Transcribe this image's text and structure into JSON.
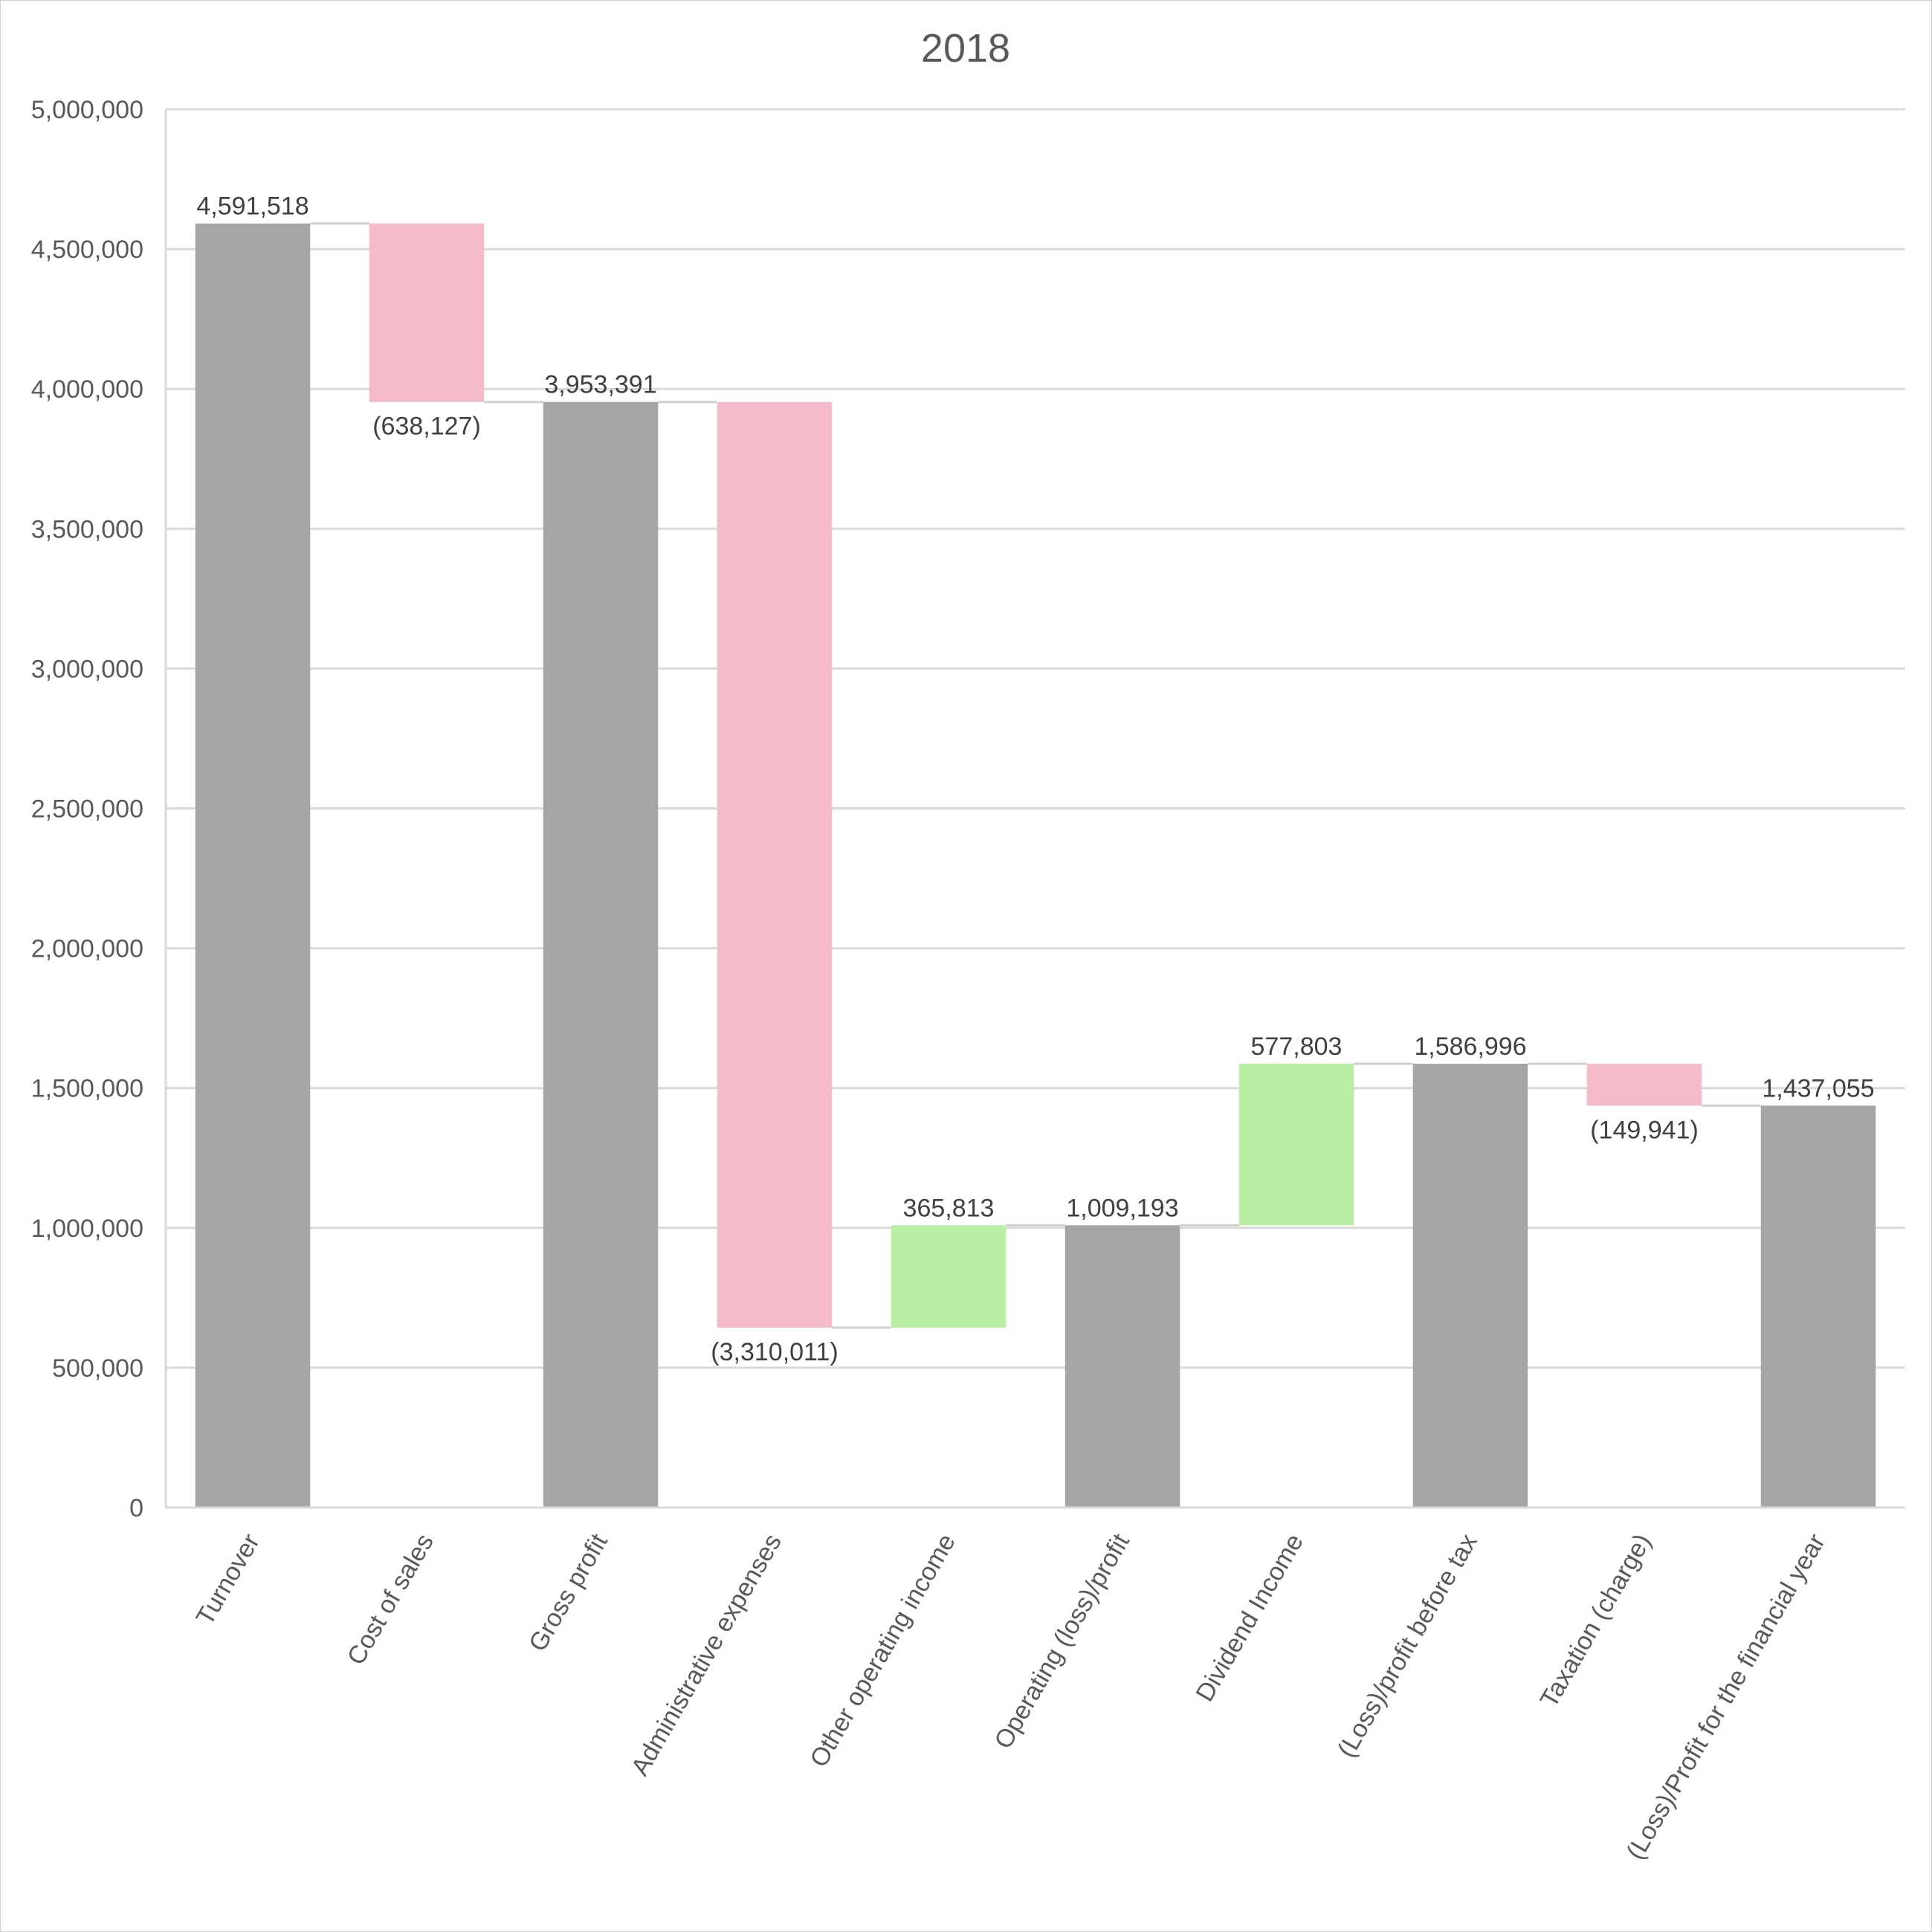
{
  "chart_data": {
    "type": "waterfall",
    "title": "2018",
    "xlabel": "",
    "ylabel": "",
    "ylim": [
      0,
      5000000
    ],
    "yticks": [
      0,
      500000,
      1000000,
      1500000,
      2000000,
      2500000,
      3000000,
      3500000,
      4000000,
      4500000,
      5000000
    ],
    "ytick_labels": [
      "0",
      "500,000",
      "1,000,000",
      "1,500,000",
      "2,000,000",
      "2,500,000",
      "3,000,000",
      "3,500,000",
      "4,000,000",
      "4,500,000",
      "5,000,000"
    ],
    "grid": true,
    "legend": "none",
    "colors": {
      "total": "#a5a5a5",
      "decrease": "#f4bcc8",
      "increase": "#b9efa4"
    },
    "bars": [
      {
        "category": "Turnover",
        "kind": "total",
        "value": 4591518,
        "label": "4,591,518"
      },
      {
        "category": "Cost of sales",
        "kind": "decrease",
        "value": -638127,
        "label": "(638,127)"
      },
      {
        "category": "Gross profit",
        "kind": "total",
        "value": 3953391,
        "label": "3,953,391"
      },
      {
        "category": "Administrative expenses",
        "kind": "decrease",
        "value": -3310011,
        "label": "(3,310,011)"
      },
      {
        "category": "Other operating income",
        "kind": "increase",
        "value": 365813,
        "label": "365,813"
      },
      {
        "category": "Operating (loss)/profit",
        "kind": "total",
        "value": 1009193,
        "label": "1,009,193"
      },
      {
        "category": "Dividend Income",
        "kind": "increase",
        "value": 577803,
        "label": "577,803"
      },
      {
        "category": "(Loss)/profit before tax",
        "kind": "total",
        "value": 1586996,
        "label": "1,586,996"
      },
      {
        "category": "Taxation (charge)",
        "kind": "decrease",
        "value": -149941,
        "label": "(149,941)"
      },
      {
        "category": "(Loss)/Profit for the financial year",
        "kind": "total",
        "value": 1437055,
        "label": "1,437,055"
      }
    ]
  }
}
